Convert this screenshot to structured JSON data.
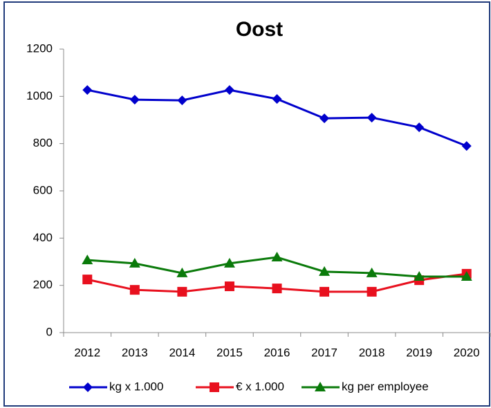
{
  "chart_data": {
    "type": "line",
    "title": "Oost",
    "categories": [
      "2012",
      "2013",
      "2014",
      "2015",
      "2016",
      "2017",
      "2018",
      "2019",
      "2020"
    ],
    "series": [
      {
        "name": "kg x 1.000",
        "color": "#0000cc",
        "marker": "diamond",
        "values": [
          1027,
          986,
          983,
          1027,
          989,
          907,
          910,
          869,
          790
        ]
      },
      {
        "name": "€ x 1.000",
        "color": "#e8101e",
        "marker": "square",
        "values": [
          225,
          181,
          173,
          196,
          187,
          173,
          173,
          222,
          249
        ]
      },
      {
        "name": "kg per employee",
        "color": "#0a7a0a",
        "marker": "triangle",
        "values": [
          307,
          293,
          252,
          293,
          319,
          258,
          252,
          237,
          237
        ]
      }
    ],
    "ylim": [
      0,
      1200
    ],
    "yticks": [
      0,
      200,
      400,
      600,
      800,
      1000,
      1200
    ],
    "grid": false,
    "legend": "bottom"
  }
}
